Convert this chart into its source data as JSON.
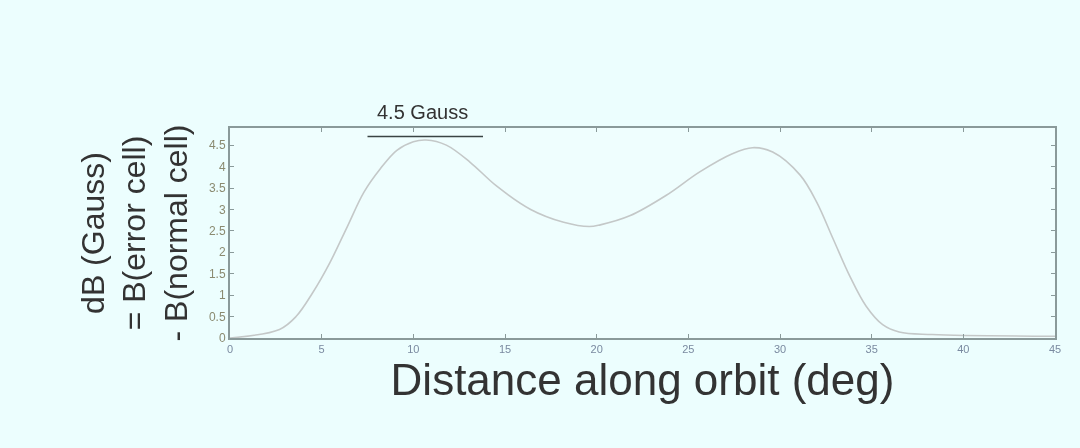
{
  "chart_data": {
    "type": "line",
    "xlabel": "Distance along orbit (deg)",
    "ylabel": "dB (Gauss)\n= B(error cell)\n- B(normal cell)",
    "annotations": [
      {
        "text": "4.5 Gauss",
        "x": 10.5,
        "y": 4.7
      }
    ],
    "series": [
      {
        "color": "#c4c8c8",
        "x": [
          0,
          2.7,
          3.6,
          4.5,
          5.45,
          6.4,
          7.3,
          8.2,
          9.1,
          10,
          10.7,
          11.8,
          13.1,
          14.5,
          16.4,
          18.2,
          19.6,
          20.2,
          21.8,
          23.8,
          25.6,
          27.4,
          28.5,
          29.6,
          31.1,
          32,
          32.9,
          33.8,
          34.7,
          35.6,
          36.5,
          38.3,
          45
        ],
        "values": [
          0,
          0.2,
          0.5,
          1.05,
          1.76,
          2.6,
          3.4,
          3.95,
          4.38,
          4.58,
          4.62,
          4.5,
          4.1,
          3.56,
          3,
          2.7,
          2.6,
          2.64,
          2.85,
          3.33,
          3.87,
          4.3,
          4.44,
          4.34,
          3.8,
          3.17,
          2.31,
          1.45,
          0.74,
          0.31,
          0.14,
          0.08,
          0.04
        ]
      },
      {
        "color": "#3a4444",
        "x": [
          7.5,
          13.8
        ],
        "values": [
          4.7,
          4.7
        ]
      }
    ],
    "xlim": [
      0,
      45
    ],
    "xticks": [
      0,
      5,
      10,
      15,
      20,
      25,
      30,
      35,
      40,
      45
    ],
    "ylim": [
      0,
      4.9
    ],
    "yticks": [
      0,
      0.5,
      1,
      1.5,
      2,
      2.5,
      3,
      3.5,
      4,
      4.5
    ],
    "grid": false,
    "marker": "none",
    "line_style": "solid"
  }
}
